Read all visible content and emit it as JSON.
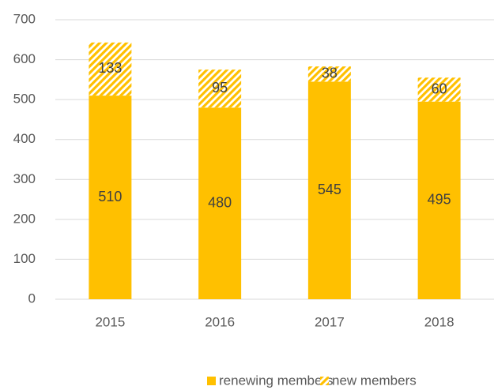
{
  "chart_data": {
    "type": "stacked_bar",
    "categories": [
      "2015",
      "2016",
      "2017",
      "2018"
    ],
    "series": [
      {
        "name": "renewing members",
        "color": "#FFC000",
        "values": [
          510,
          480,
          545,
          495
        ]
      },
      {
        "name": "new members",
        "color": "#FFC000",
        "pattern": "diagonal",
        "values": [
          133,
          95,
          38,
          60
        ]
      }
    ],
    "ylim": [
      0,
      700
    ],
    "yticks": [
      0,
      100,
      200,
      300,
      400,
      500,
      600,
      700
    ],
    "grid": true,
    "legend": "bottom"
  }
}
